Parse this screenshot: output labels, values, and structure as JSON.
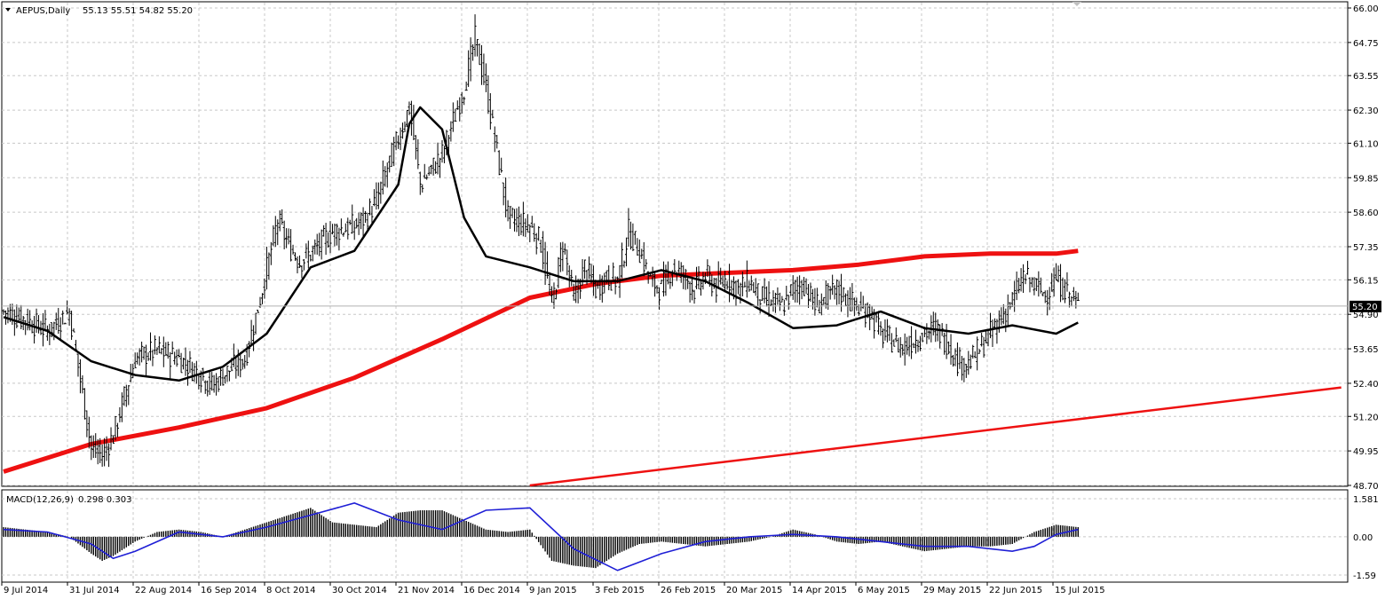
{
  "header": {
    "symbol_label": "AEPUS,Daily",
    "ohlc": "55.13 55.51 54.82 55.20"
  },
  "macd": {
    "label": "MACD(12,26,9)",
    "values": "0.298 0.303"
  },
  "colors": {
    "price_bar": "#000000",
    "ma_fast": "#000000",
    "ma_slow": "#ee1111",
    "trendline": "#ee1111",
    "signal": "#1f1fd6",
    "grid": "#c8c8c8",
    "current_price_bg": "#000000"
  },
  "icons": [
    "dropdown-triangle-icon"
  ],
  "chart_data": [
    {
      "type": "line",
      "title": "AEPUS,Daily",
      "ylim": [
        48.7,
        66.0
      ],
      "y_ticks": [
        "66.00",
        "64.75",
        "63.55",
        "62.30",
        "61.10",
        "59.85",
        "58.60",
        "57.35",
        "56.15",
        "54.90",
        "53.65",
        "52.40",
        "51.20",
        "49.95",
        "48.70"
      ],
      "x_ticks": [
        "9 Jul 2014",
        "31 Jul 2014",
        "22 Aug 2014",
        "16 Sep 2014",
        "8 Oct 2014",
        "30 Oct 2014",
        "21 Nov 2014",
        "16 Dec 2014",
        "9 Jan 2015",
        "3 Feb 2015",
        "26 Feb 2015",
        "20 Mar 2015",
        "14 Apr 2015",
        "6 May 2015",
        "29 May 2015",
        "22 Jun 2015",
        "15 Jul 2015"
      ],
      "current_price": "55.20",
      "series": [
        {
          "kind": "price",
          "x": [
            0,
            10,
            20,
            30,
            40,
            45,
            50,
            60,
            70,
            80,
            90,
            95,
            100,
            110,
            115,
            125,
            130,
            135,
            140,
            150,
            160,
            165,
            170,
            175,
            185,
            190,
            200,
            210,
            215,
            220,
            230,
            240,
            245,
            250,
            255,
            260,
            265,
            270,
            275,
            280,
            285
          ],
          "y": [
            55.0,
            54.7,
            54.3,
            55.0,
            50.0,
            49.8,
            50.5,
            53.3,
            53.6,
            53.3,
            52.7,
            52.3,
            52.7,
            53.3,
            54.8,
            58.3,
            57.4,
            56.8,
            57.1,
            57.9,
            58.1,
            58.4,
            59.0,
            60.2,
            62.4,
            59.6,
            60.7,
            63.1,
            64.9,
            63.1,
            58.4,
            58.1,
            57.5,
            55.2,
            57.5,
            55.4,
            56.6,
            55.8,
            56.3,
            56.1,
            57.9
          ]
        },
        {
          "kind": "price_cont",
          "x": [
            290,
            295,
            300,
            305,
            310,
            315,
            320,
            325,
            330,
            335,
            340,
            345,
            355,
            360,
            365,
            370,
            380,
            390,
            395,
            400,
            410,
            420,
            425,
            430,
            435,
            440,
            450,
            460,
            465,
            475,
            480,
            490
          ],
          "y": [
            57.2,
            56.1,
            55.8,
            56.6,
            56.3,
            55.8,
            56.3,
            55.9,
            56.2,
            55.8,
            56.1,
            55.5,
            55.2,
            55.8,
            56.0,
            55.2,
            55.8,
            55.1,
            55.0,
            54.2,
            53.7,
            54.2,
            54.4,
            53.9,
            53.2,
            53.1,
            54.2,
            55.4,
            56.3,
            55.6,
            56.2,
            55.2
          ]
        },
        {
          "name": "",
          "kind": "ma_fast",
          "x": [
            0,
            20,
            40,
            60,
            80,
            100,
            120,
            140,
            160,
            180,
            185,
            190,
            200,
            210,
            220,
            240,
            260,
            280,
            300,
            320,
            340,
            360,
            380,
            400,
            420,
            440,
            460,
            480,
            490
          ],
          "y": [
            54.8,
            54.3,
            53.2,
            52.7,
            52.5,
            53.0,
            54.2,
            56.6,
            57.2,
            59.6,
            61.8,
            62.4,
            61.6,
            58.4,
            57.0,
            56.6,
            56.1,
            56.1,
            56.5,
            56.1,
            55.3,
            54.4,
            54.5,
            55.0,
            54.4,
            54.2,
            54.5,
            54.2,
            54.6
          ]
        },
        {
          "name": "",
          "kind": "ma_slow",
          "x": [
            0,
            40,
            80,
            120,
            160,
            200,
            240,
            270,
            300,
            330,
            360,
            390,
            420,
            450,
            480,
            490
          ],
          "y": [
            49.2,
            50.2,
            50.8,
            51.5,
            52.6,
            54.0,
            55.5,
            56.0,
            56.3,
            56.4,
            56.5,
            56.7,
            57.0,
            57.1,
            57.1,
            57.2
          ]
        },
        {
          "name": "",
          "kind": "trendline",
          "x": [
            240,
            610
          ],
          "y": [
            48.7,
            52.25
          ]
        }
      ]
    },
    {
      "type": "bar",
      "title": "MACD(12,26,9)",
      "ylim": [
        -1.59,
        1.581
      ],
      "y_ticks": [
        "1.581",
        "0.00",
        "-1.59"
      ],
      "series": [
        {
          "name": "",
          "kind": "histogram",
          "x": [
            0,
            10,
            20,
            30,
            40,
            45,
            50,
            60,
            70,
            80,
            90,
            100,
            110,
            120,
            130,
            140,
            150,
            160,
            170,
            180,
            190,
            200,
            210,
            220,
            230,
            240,
            250,
            260,
            270,
            280,
            290,
            300,
            310,
            320,
            330,
            340,
            350,
            360,
            370,
            380,
            390,
            400,
            410,
            420,
            430,
            440,
            450,
            460,
            470,
            480,
            490
          ],
          "y": [
            0.4,
            0.3,
            0.2,
            0.0,
            -0.7,
            -1.0,
            -0.8,
            -0.2,
            0.2,
            0.3,
            0.2,
            0.0,
            0.3,
            0.6,
            0.9,
            1.2,
            0.6,
            0.5,
            0.4,
            1.0,
            1.1,
            1.1,
            0.7,
            0.3,
            0.2,
            0.3,
            -1.0,
            -1.2,
            -1.3,
            -0.7,
            -0.3,
            -0.2,
            -0.3,
            -0.4,
            -0.3,
            -0.2,
            0.0,
            0.3,
            0.1,
            -0.2,
            -0.3,
            -0.2,
            -0.4,
            -0.6,
            -0.5,
            -0.4,
            -0.4,
            -0.3,
            0.2,
            0.5,
            0.4
          ]
        },
        {
          "name": "",
          "kind": "signal",
          "x": [
            0,
            20,
            40,
            50,
            60,
            80,
            100,
            120,
            140,
            160,
            180,
            200,
            220,
            240,
            260,
            280,
            300,
            320,
            340,
            360,
            380,
            400,
            420,
            440,
            460,
            470,
            480,
            490
          ],
          "y": [
            0.3,
            0.2,
            -0.3,
            -0.9,
            -0.6,
            0.2,
            0.0,
            0.4,
            0.9,
            1.4,
            0.7,
            0.3,
            1.1,
            1.2,
            -0.5,
            -1.4,
            -0.7,
            -0.2,
            0.0,
            0.1,
            0.0,
            -0.2,
            -0.4,
            -0.4,
            -0.6,
            -0.4,
            0.1,
            0.3
          ]
        }
      ]
    }
  ]
}
